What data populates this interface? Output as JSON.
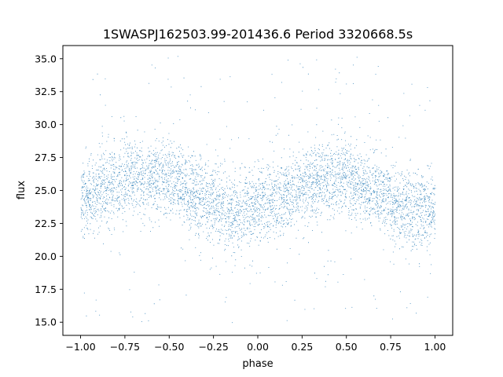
{
  "chart_data": {
    "type": "scatter",
    "title": "1SWASPJ162503.99-201436.6 Period 3320668.5s",
    "xlabel": "phase",
    "ylabel": "flux",
    "xlim": [
      -1.1,
      1.1
    ],
    "ylim": [
      14.0,
      36.0
    ],
    "xticks": [
      -1.0,
      -0.75,
      -0.5,
      -0.25,
      0.0,
      0.25,
      0.5,
      0.75,
      1.0
    ],
    "xtick_labels": [
      "−1.00",
      "−0.75",
      "−0.50",
      "−0.25",
      "0.00",
      "0.25",
      "0.50",
      "0.75",
      "1.00"
    ],
    "yticks": [
      15.0,
      17.5,
      20.0,
      22.5,
      25.0,
      27.5,
      30.0,
      32.5,
      35.0
    ],
    "ytick_labels": [
      "15.0",
      "17.5",
      "20.0",
      "22.5",
      "25.0",
      "27.5",
      "30.0",
      "32.5",
      "35.0"
    ],
    "grid": false,
    "marker_color": "#1f77b4",
    "series": [
      {
        "x_range": [
          -1.0,
          1.0
        ],
        "trend": [
          [
            -1.0,
            24.3
          ],
          [
            -0.9,
            25.0
          ],
          [
            -0.8,
            25.6
          ],
          [
            -0.7,
            26.2
          ],
          [
            -0.6,
            26.0
          ],
          [
            -0.5,
            25.8
          ],
          [
            -0.4,
            25.2
          ],
          [
            -0.3,
            24.5
          ],
          [
            -0.2,
            23.6
          ],
          [
            -0.1,
            23.3
          ],
          [
            0.0,
            23.8
          ],
          [
            0.1,
            24.3
          ],
          [
            0.2,
            25.0
          ],
          [
            0.3,
            25.6
          ],
          [
            0.4,
            26.0
          ],
          [
            0.5,
            25.8
          ],
          [
            0.6,
            25.2
          ],
          [
            0.7,
            24.8
          ],
          [
            0.8,
            23.6
          ],
          [
            0.9,
            23.3
          ],
          [
            1.0,
            23.6
          ]
        ],
        "spread": 3.2,
        "y_min": 15.0,
        "y_max": 35.2
      }
    ]
  }
}
